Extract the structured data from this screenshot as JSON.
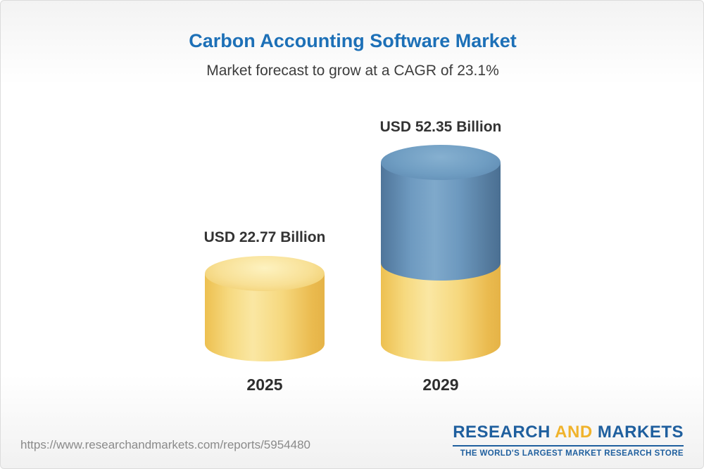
{
  "header": {
    "title": "Carbon Accounting Software Market",
    "subtitle": "Market forecast to grow at a CAGR of 23.1%"
  },
  "chart_data": {
    "type": "bar",
    "categories": [
      "2025",
      "2029"
    ],
    "values": [
      22.77,
      52.35
    ],
    "value_labels": [
      "USD 22.77 Billion",
      "USD 52.35 Billion"
    ],
    "unit": "USD Billion",
    "title": "Carbon Accounting Software Market",
    "subtitle": "Market forecast to grow at a CAGR of 23.1%",
    "cagr": "23.1%",
    "legend_position": "none",
    "grid": false,
    "colors": {
      "base_segment": "#f2cd68",
      "growth_segment": "#5e8cb4",
      "title": "#1d70b7"
    }
  },
  "bars": [
    {
      "year": "2025",
      "label": "USD 22.77 Billion"
    },
    {
      "year": "2029",
      "label": "USD 52.35 Billion"
    }
  ],
  "footer": {
    "url": "https://www.researchandmarkets.com/reports/5954480",
    "logo": {
      "research": "RESEARCH",
      "and": "AND",
      "markets": "MARKETS",
      "tagline": "THE WORLD'S LARGEST MARKET RESEARCH STORE"
    }
  }
}
